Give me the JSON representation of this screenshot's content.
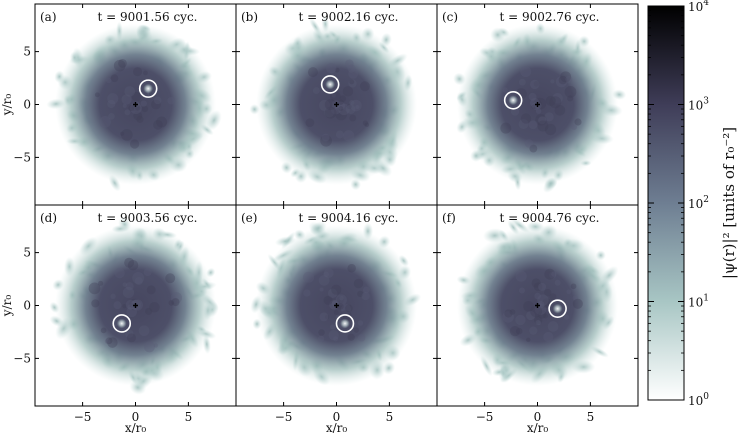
{
  "figure": {
    "x_axis_label": "x/r₀",
    "y_axis_label": "y/r₀",
    "x_ticks": [
      -5,
      0,
      5
    ],
    "y_ticks": [
      5,
      0,
      -5
    ],
    "xlim": [
      -9.5,
      9.5
    ],
    "ylim": [
      -9.5,
      9.5
    ]
  },
  "panels": [
    {
      "label": "(a)",
      "time": "t = 9001.56 cyc.",
      "vortex": [
        1.2,
        1.5
      ]
    },
    {
      "label": "(b)",
      "time": "t = 9002.16 cyc.",
      "vortex": [
        -0.6,
        1.9
      ]
    },
    {
      "label": "(c)",
      "time": "t = 9002.76 cyc.",
      "vortex": [
        -2.3,
        0.4
      ]
    },
    {
      "label": "(d)",
      "time": "t = 9003.56 cyc.",
      "vortex": [
        -1.3,
        -1.7
      ]
    },
    {
      "label": "(e)",
      "time": "t = 9004.16 cyc.",
      "vortex": [
        0.8,
        -1.7
      ]
    },
    {
      "label": "(f)",
      "time": "t = 9004.76 cyc.",
      "vortex": [
        1.9,
        -0.3
      ]
    }
  ],
  "colorbar": {
    "title": "|ψ(r)|² [units of r₀⁻²]",
    "ticks": [
      {
        "base": "10",
        "exp": "4",
        "value": 4
      },
      {
        "base": "10",
        "exp": "3",
        "value": 3
      },
      {
        "base": "10",
        "exp": "2",
        "value": 2
      },
      {
        "base": "10",
        "exp": "1",
        "value": 1
      },
      {
        "base": "10",
        "exp": "0",
        "value": 0
      }
    ],
    "range_log10": [
      0,
      4
    ],
    "colors": [
      "#ffffff",
      "#a8c6c4",
      "#6e7e92",
      "#3f3d58",
      "#000000"
    ]
  },
  "colors": {
    "cloud_core": "#4a4a66",
    "cloud_mid": "#6a7a8c",
    "cloud_edge": "#a9c7c4",
    "marker": "#ffffff",
    "center_marker": "#000000"
  }
}
